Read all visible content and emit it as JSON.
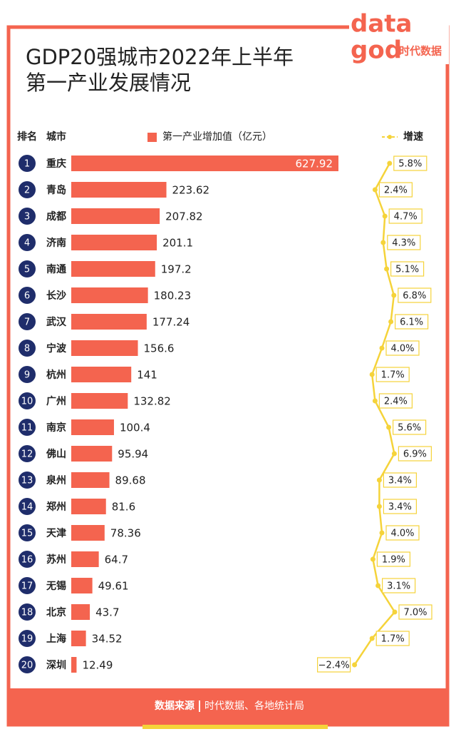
{
  "chart_data": {
    "type": "bar",
    "title": [
      "GDP20强城市2022年上半年",
      "第一产业发展情况"
    ],
    "logo": [
      "data",
      "god",
      "时代数据"
    ],
    "rank_header": "排名",
    "city_header": "城市",
    "ranks": [
      1,
      2,
      3,
      4,
      5,
      6,
      7,
      8,
      9,
      10,
      11,
      12,
      13,
      14,
      15,
      16,
      17,
      18,
      19,
      20
    ],
    "categories": [
      "重庆",
      "青岛",
      "成都",
      "济南",
      "南通",
      "长沙",
      "武汉",
      "宁波",
      "杭州",
      "广州",
      "南京",
      "佛山",
      "泉州",
      "郑州",
      "天津",
      "苏州",
      "无锡",
      "北京",
      "上海",
      "深圳"
    ],
    "series": [
      {
        "name": "第一产业增加值（亿元）",
        "color": "#f4644f",
        "values": [
          627.92,
          223.62,
          207.82,
          201.1,
          197.2,
          180.23,
          177.24,
          156.6,
          141,
          132.82,
          100.4,
          95.94,
          89.68,
          81.6,
          78.36,
          64.7,
          49.61,
          43.7,
          34.52,
          12.49
        ]
      },
      {
        "name": "增速",
        "color": "#f5d33a",
        "type": "line",
        "values": [
          5.8,
          2.4,
          4.7,
          4.3,
          5.1,
          6.8,
          6.1,
          4.0,
          1.7,
          2.4,
          5.6,
          6.9,
          3.4,
          3.4,
          4.0,
          1.9,
          3.1,
          7.0,
          1.7,
          -2.4
        ],
        "value_labels": [
          "5.8%",
          "2.4%",
          "4.7%",
          "4.3%",
          "5.1%",
          "6.8%",
          "6.1%",
          "4.0%",
          "1.7%",
          "2.4%",
          "5.6%",
          "6.9%",
          "3.4%",
          "3.4%",
          "4.0%",
          "1.9%",
          "3.1%",
          "7.0%",
          "1.7%",
          "−2.4%"
        ]
      }
    ],
    "source_label": "数据来源",
    "source": "时代数据、各地统计局"
  }
}
